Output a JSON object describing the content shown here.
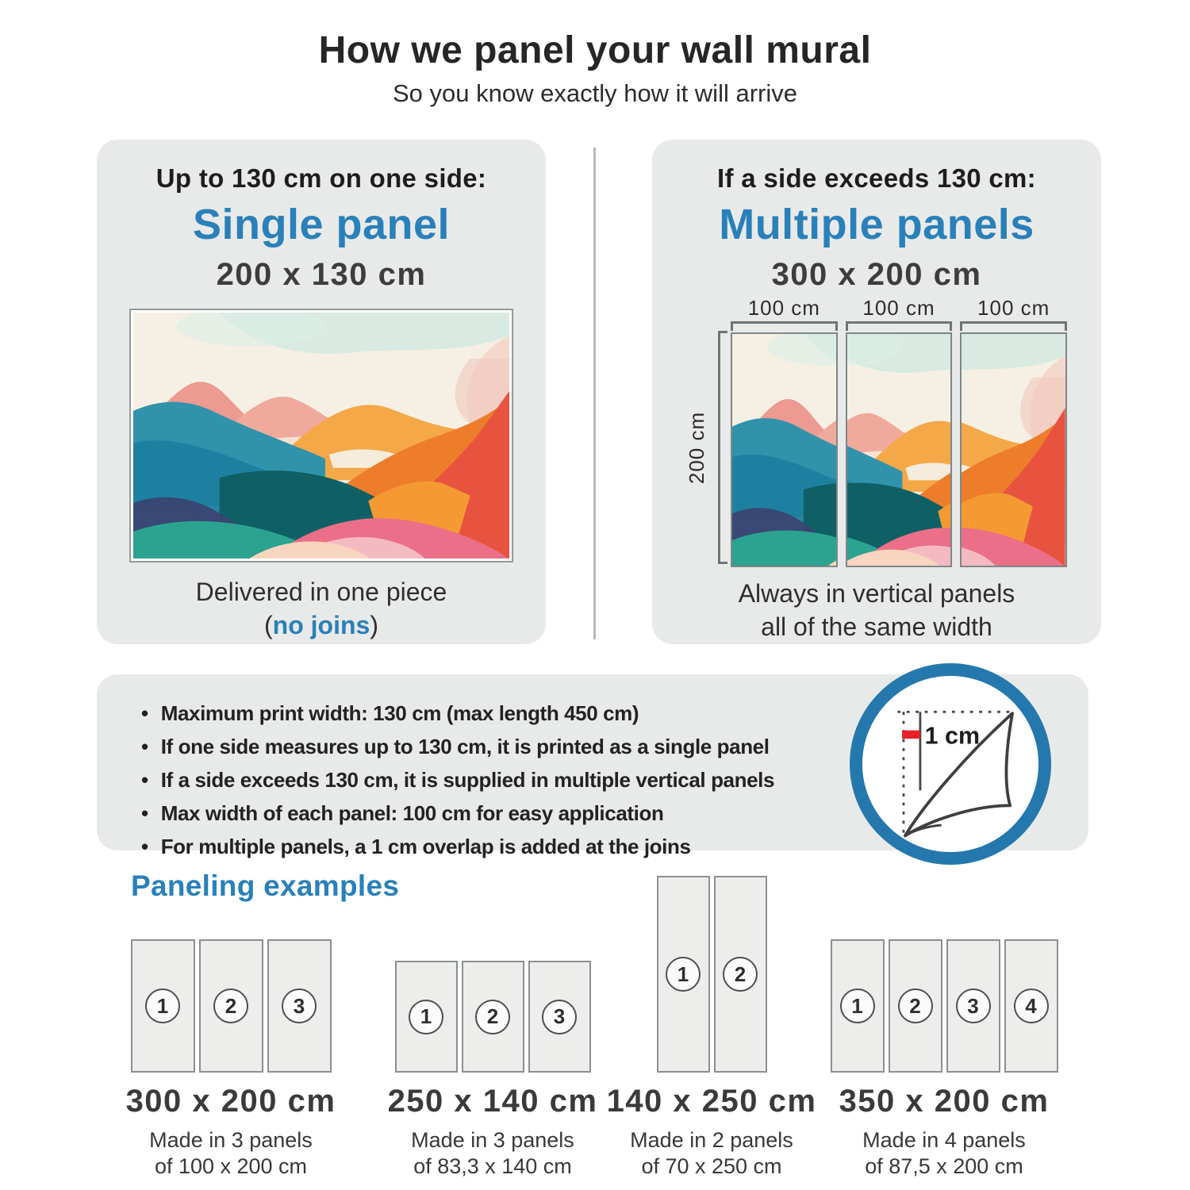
{
  "header": {
    "title": "How we panel your wall mural",
    "subtitle": "So you know exactly how it will arrive"
  },
  "single_panel_card": {
    "condition": "Up to 130 cm on one side:",
    "title": "Single panel",
    "size": "200 x 130 cm",
    "caption_line1": "Delivered in one piece",
    "caption_open": "(",
    "caption_link": "no joins",
    "caption_close": ")"
  },
  "multiple_panels_card": {
    "condition": "If a side exceeds 130 cm:",
    "title": "Multiple panels",
    "size": "300 x 200 cm",
    "width_labels": [
      "100 cm",
      "100 cm",
      "100 cm"
    ],
    "height_label": "200 cm",
    "caption_line1": "Always in vertical panels",
    "caption_line2": "all of the same width"
  },
  "specs": {
    "bullets": [
      "Maximum print width: 130 cm (max length 450 cm)",
      "If one side measures up to 130 cm, it is printed as a single panel",
      "If a side exceeds 130 cm, it is supplied in multiple vertical panels",
      "Max width of each panel: 100 cm for easy application",
      "For multiple panels, a 1 cm overlap is added at the joins"
    ],
    "overlap_label": "1 cm"
  },
  "examples": {
    "heading": "Paneling examples",
    "items": [
      {
        "size": "300 x 200 cm",
        "made_line1": "Made in 3 panels",
        "made_line2": "of 100 x 200 cm",
        "panel_numbers": [
          "1",
          "2",
          "3"
        ]
      },
      {
        "size": "250 x 140 cm",
        "made_line1": "Made in 3 panels",
        "made_line2": "of 83,3 x 140 cm",
        "panel_numbers": [
          "1",
          "2",
          "3"
        ]
      },
      {
        "size": "140 x 250 cm",
        "made_line1": "Made in 2 panels",
        "made_line2": "of 70 x 250 cm",
        "panel_numbers": [
          "1",
          "2"
        ]
      },
      {
        "size": "350 x 200 cm",
        "made_line1": "Made in 4 panels",
        "made_line2": "of 87,5 x 200 cm",
        "panel_numbers": [
          "1",
          "2",
          "3",
          "4"
        ]
      }
    ]
  },
  "colors": {
    "accent_blue": "#2a80b9",
    "card_bg": "#e8eae9",
    "marker_red": "#e8212a",
    "text_dark": "#232323"
  }
}
